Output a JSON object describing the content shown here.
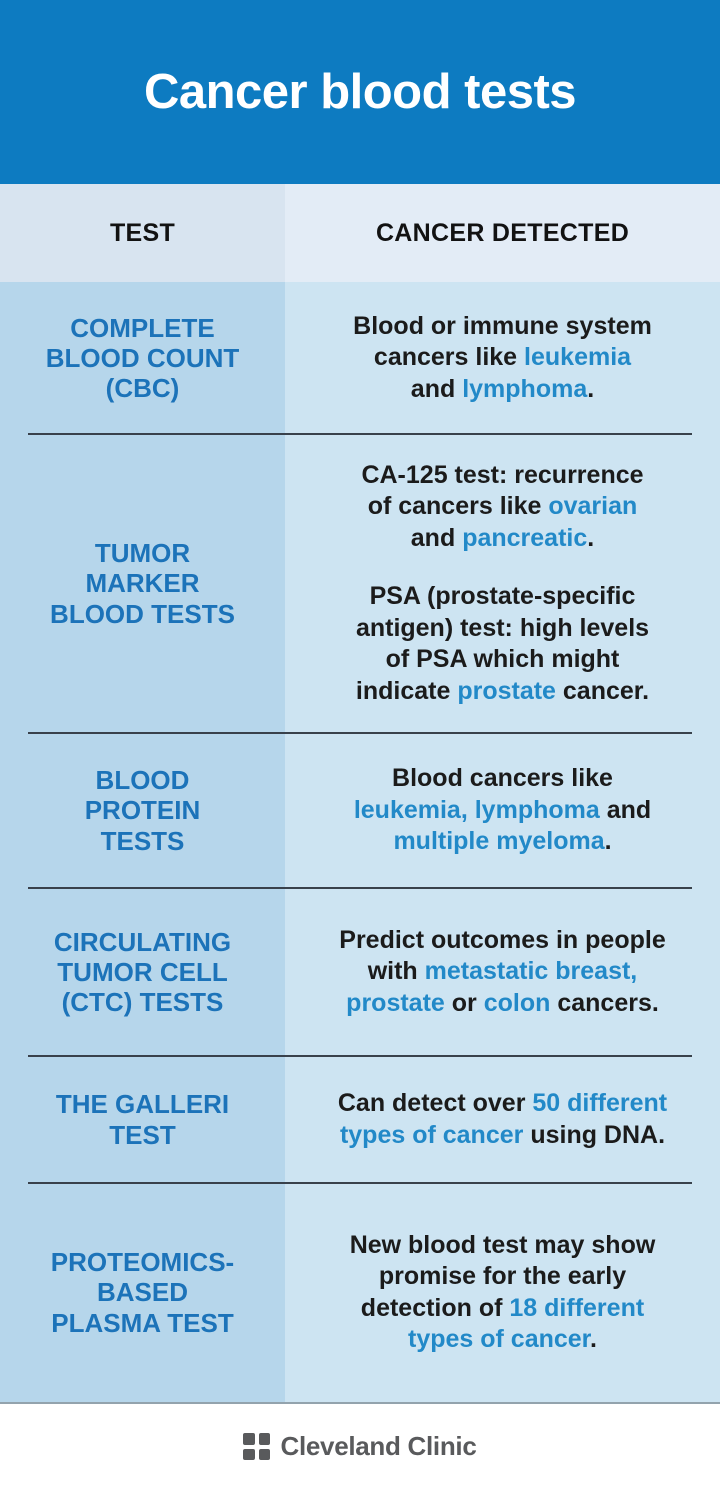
{
  "header": {
    "title": "Cancer blood tests"
  },
  "columns": {
    "test": "TEST",
    "detected": "CANCER DETECTED"
  },
  "rows": [
    {
      "test": "COMPLETE\nBLOOD COUNT\n(CBC)",
      "paragraphs": [
        [
          {
            "t": "Blood or immune system"
          },
          {
            "br": true
          },
          {
            "t": "cancers like "
          },
          {
            "t": "leukemia",
            "hl": true
          },
          {
            "br": true
          },
          {
            "t": "and "
          },
          {
            "t": "lymphoma",
            "hl": true
          },
          {
            "t": "."
          }
        ]
      ]
    },
    {
      "test": "TUMOR\nMARKER\nBLOOD TESTS",
      "paragraphs": [
        [
          {
            "t": "CA-125 test: recurrence"
          },
          {
            "br": true
          },
          {
            "t": "of cancers like "
          },
          {
            "t": "ovarian",
            "hl": true
          },
          {
            "br": true
          },
          {
            "t": "and "
          },
          {
            "t": "pancreatic",
            "hl": true
          },
          {
            "t": "."
          }
        ],
        [
          {
            "t": "PSA (prostate-specific"
          },
          {
            "br": true
          },
          {
            "t": "antigen) test: high levels"
          },
          {
            "br": true
          },
          {
            "t": "of PSA which might"
          },
          {
            "br": true
          },
          {
            "t": "indicate "
          },
          {
            "t": "prostate",
            "hl": true
          },
          {
            "t": " cancer."
          }
        ]
      ]
    },
    {
      "test": "BLOOD\nPROTEIN\nTESTS",
      "paragraphs": [
        [
          {
            "t": "Blood cancers like"
          },
          {
            "br": true
          },
          {
            "t": "leukemia,",
            "hl": true
          },
          {
            "t": " "
          },
          {
            "t": "lymphoma",
            "hl": true
          },
          {
            "t": " and"
          },
          {
            "br": true
          },
          {
            "t": "multiple myeloma",
            "hl": true
          },
          {
            "t": "."
          }
        ]
      ]
    },
    {
      "test": "CIRCULATING\nTUMOR CELL\n(CTC) TESTS",
      "paragraphs": [
        [
          {
            "t": "Predict outcomes in people"
          },
          {
            "br": true
          },
          {
            "t": "with "
          },
          {
            "t": "metastatic breast,",
            "hl": true
          },
          {
            "br": true
          },
          {
            "t": "prostate",
            "hl": true
          },
          {
            "t": " or "
          },
          {
            "t": "colon",
            "hl": true
          },
          {
            "t": " cancers."
          }
        ]
      ]
    },
    {
      "test": "THE GALLERI\nTEST",
      "paragraphs": [
        [
          {
            "t": "Can detect over "
          },
          {
            "t": "50 different",
            "hl": true
          },
          {
            "br": true
          },
          {
            "t": "types of cancer",
            "hl": true
          },
          {
            "t": " using DNA."
          }
        ]
      ]
    },
    {
      "test": "PROTEOMICS-\nBASED\nPLASMA TEST",
      "paragraphs": [
        [
          {
            "t": "New blood test may show"
          },
          {
            "br": true
          },
          {
            "t": "promise for the early"
          },
          {
            "br": true
          },
          {
            "t": "detection of "
          },
          {
            "t": "18 different",
            "hl": true
          },
          {
            "br": true
          },
          {
            "t": "types of cancer",
            "hl": true
          },
          {
            "t": "."
          }
        ]
      ]
    }
  ],
  "footer": {
    "brand": "Cleveland Clinic"
  },
  "colors": {
    "banner_blue": "#0d7bc1",
    "label_blue": "#1c73b9",
    "highlight_blue": "#2289c8",
    "colhead_left_bg": "#d8e4f0",
    "colhead_right_bg": "#e3ecf6",
    "body_left_bg": "#b6d6eb",
    "body_right_bg": "#cde4f2",
    "divider": "#39414b",
    "logo_gray": "#595a5c"
  }
}
